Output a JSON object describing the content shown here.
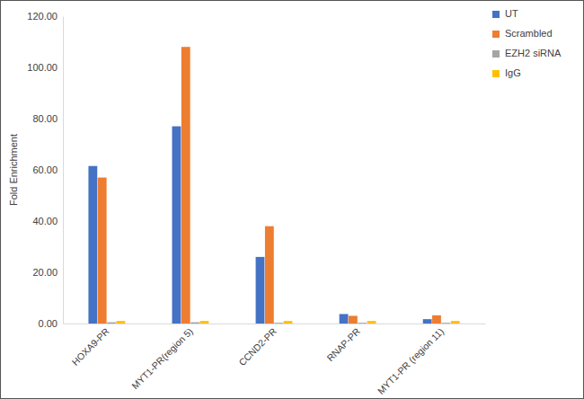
{
  "chart_data": {
    "type": "bar",
    "y_label": "Fold Enrichment",
    "categories": [
      "HOXA9-PR",
      "MYT1-PR(region 5)",
      "CCND2-PR",
      "RNAP-PR",
      "MYT1-PR (region 11)"
    ],
    "series": [
      {
        "name": "UT",
        "color": "#4472c4",
        "values": [
          61.5,
          77,
          26,
          3.7,
          1.7
        ]
      },
      {
        "name": "Scrambled",
        "color": "#ed7d31",
        "values": [
          57,
          108,
          38,
          3,
          3.2
        ]
      },
      {
        "name": "EZH2 siRNA",
        "color": "#a5a5a5",
        "values": [
          0.5,
          0.5,
          0.3,
          0.3,
          0.3
        ]
      },
      {
        "name": "IgG",
        "color": "#ffc000",
        "values": [
          1,
          1,
          1,
          1,
          1
        ]
      }
    ],
    "ylim": [
      0,
      120
    ],
    "yticks": [
      {
        "value": 0,
        "label": "0.00"
      },
      {
        "value": 20,
        "label": "20.00"
      },
      {
        "value": 40,
        "label": "40.00"
      },
      {
        "value": 60,
        "label": "60.00"
      },
      {
        "value": 80,
        "label": "80.00"
      },
      {
        "value": 100,
        "label": "100.00"
      },
      {
        "value": 120,
        "label": "120.00"
      }
    ],
    "grid": false,
    "legend": "top-right"
  }
}
